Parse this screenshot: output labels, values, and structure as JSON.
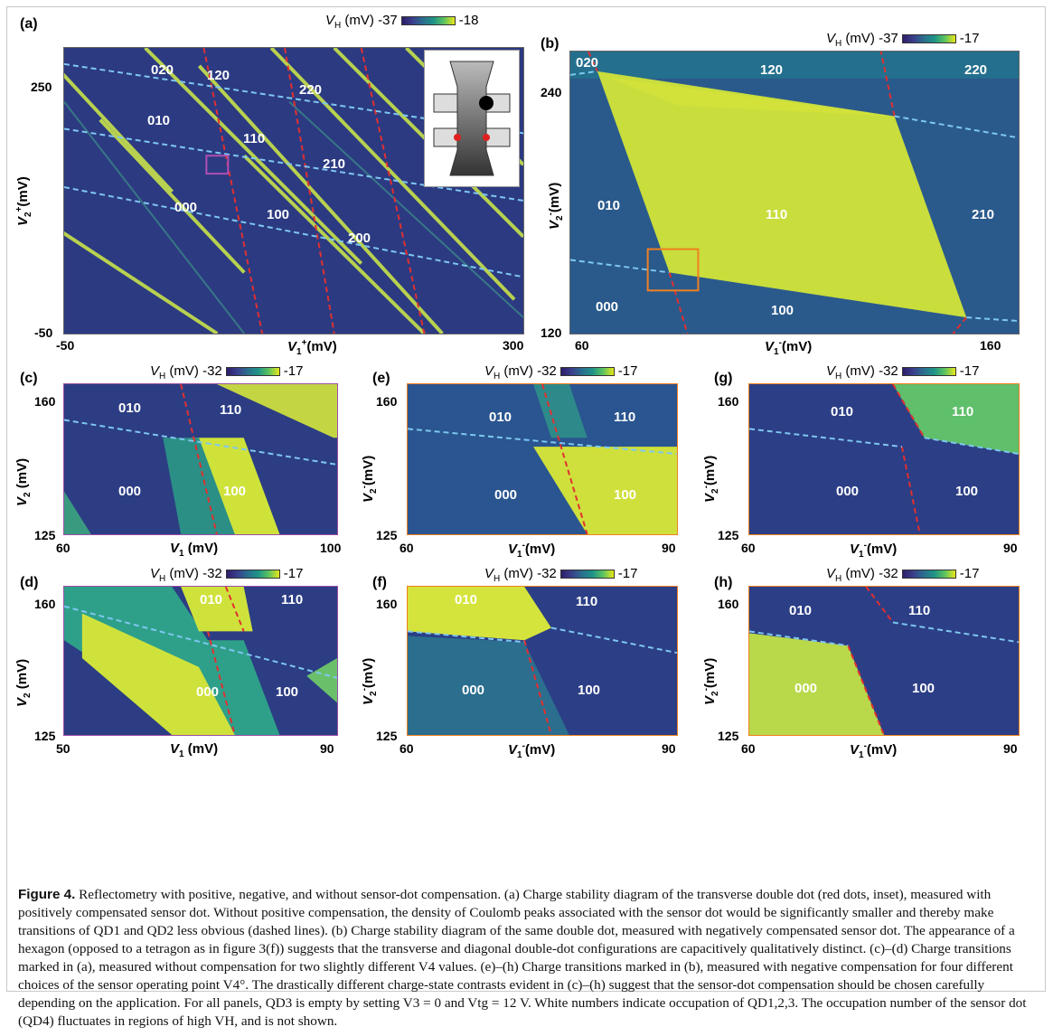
{
  "colors": {
    "dark": "#2e2a6e",
    "mid": "#1f5f8f",
    "bright": "#d7e83a",
    "red_line": "#e03030",
    "blue_line": "#7ec8f0"
  },
  "panels": {
    "a": {
      "label": "(a)",
      "cb_label": "V_H (mV)",
      "cb_min": "-37",
      "cb_max": "-18",
      "x_ticks": [
        "-50",
        "300"
      ],
      "y_ticks": [
        "250",
        "-50"
      ],
      "xlabel": "V1+ (mV)",
      "ylabel": "V2+ (mV)",
      "states": [
        "020",
        "120",
        "220",
        "010",
        "110",
        "210",
        "000",
        "100",
        "200"
      ]
    },
    "b": {
      "label": "(b)",
      "cb_label": "V_H (mV)",
      "cb_min": "-37",
      "cb_max": "-17",
      "x_ticks": [
        "60",
        "160"
      ],
      "y_ticks": [
        "240",
        "120"
      ],
      "xlabel": "V1- (mV)",
      "ylabel": "V2- (mV)",
      "states": [
        "020",
        "120",
        "220",
        "010",
        "110",
        "210",
        "000",
        "100"
      ]
    },
    "c": {
      "label": "(c)",
      "cb_label": "V_H (mV)",
      "cb_min": "-32",
      "cb_max": "-17",
      "x_ticks": [
        "60",
        "100"
      ],
      "y_ticks": [
        "160",
        "125"
      ],
      "xlabel": "V1 (mV)",
      "ylabel": "V2 (mV)",
      "states": [
        "010",
        "110",
        "000",
        "100"
      ]
    },
    "d": {
      "label": "(d)",
      "cb_label": "V_H (mV)",
      "cb_min": "-32",
      "cb_max": "-17",
      "x_ticks": [
        "50",
        "90"
      ],
      "y_ticks": [
        "160",
        "125"
      ],
      "xlabel": "V1 (mV)",
      "ylabel": "V2 (mV)",
      "states": [
        "010",
        "110",
        "000",
        "100"
      ]
    },
    "e": {
      "label": "(e)",
      "cb_label": "V_H (mV)",
      "cb_min": "-32",
      "cb_max": "-17",
      "x_ticks": [
        "60",
        "90"
      ],
      "y_ticks": [
        "160",
        "125"
      ],
      "xlabel": "V1- (mV)",
      "ylabel": "V2- (mV)",
      "states": [
        "010",
        "110",
        "000",
        "100"
      ]
    },
    "f": {
      "label": "(f)",
      "cb_label": "V_H (mV)",
      "cb_min": "-32",
      "cb_max": "-17",
      "x_ticks": [
        "60",
        "90"
      ],
      "y_ticks": [
        "160",
        "125"
      ],
      "xlabel": "V1- (mV)",
      "ylabel": "V2- (mV)",
      "states": [
        "010",
        "110",
        "000",
        "100"
      ]
    },
    "g": {
      "label": "(g)",
      "cb_label": "V_H (mV)",
      "cb_min": "-32",
      "cb_max": "-17",
      "x_ticks": [
        "60",
        "90"
      ],
      "y_ticks": [
        "160",
        "125"
      ],
      "xlabel": "V1- (mV)",
      "ylabel": "V2- (mV)",
      "states": [
        "010",
        "110",
        "000",
        "100"
      ]
    },
    "h": {
      "label": "(h)",
      "cb_label": "V_H (mV)",
      "cb_min": "-32",
      "cb_max": "-17",
      "x_ticks": [
        "60",
        "90"
      ],
      "y_ticks": [
        "160",
        "125"
      ],
      "xlabel": "V1- (mV)",
      "ylabel": "V2- (mV)",
      "states": [
        "010",
        "110",
        "000",
        "100"
      ]
    }
  },
  "caption": {
    "title": "Figure 4.",
    "text": " Reflectometry with positive, negative, and without sensor-dot compensation. (a) Charge stability diagram of the transverse double dot (red dots, inset), measured with positively compensated sensor dot. Without positive compensation, the density of Coulomb peaks associated with the sensor dot would be significantly smaller and thereby make transitions of QD1 and QD2 less obvious (dashed lines). (b) Charge stability diagram of the same double dot, measured with negatively compensated sensor dot. The appearance of a hexagon (opposed to a tetragon as in figure 3(f)) suggests that the transverse and diagonal double-dot configurations are capacitively qualitatively distinct. (c)–(d) Charge transitions marked in (a), measured without compensation for two slightly different V4 values. (e)–(h) Charge transitions marked in (b), measured with negative compensation for four different choices of the sensor operating point V4°. The drastically different charge-state contrasts evident in (c)–(h) suggest that the sensor-dot compensation should be chosen carefully depending on the application. For all panels, QD3 is empty by setting V3 = 0 and Vtg = 12 V. White numbers indicate occupation of QD1,2,3. The occupation number of the sensor dot (QD4) fluctuates in regions of high VH, and is not shown."
  }
}
